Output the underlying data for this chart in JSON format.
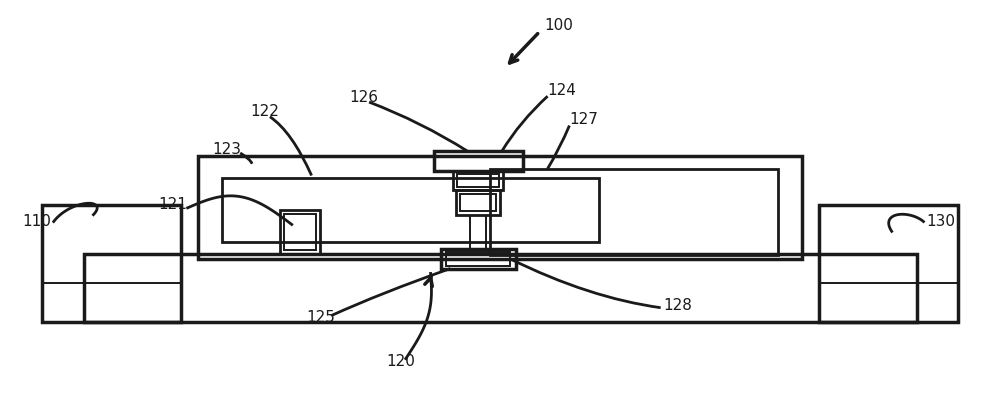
{
  "background_color": "#ffffff",
  "line_color": "#1a1a1a",
  "fig_width": 10.0,
  "fig_height": 3.99,
  "dpi": 100
}
